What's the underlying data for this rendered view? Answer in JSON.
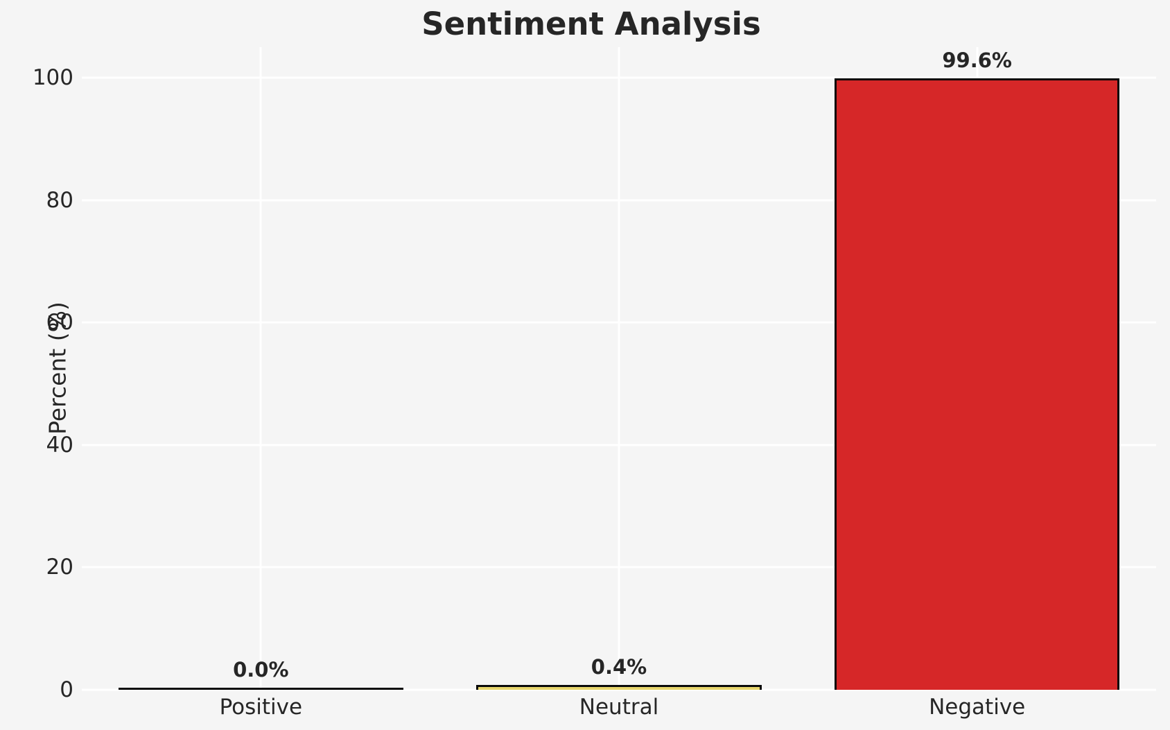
{
  "chart": {
    "title": "Sentiment Analysis",
    "ylabel": "Percent (%)"
  },
  "chart_data": {
    "type": "bar",
    "title": "Sentiment Analysis",
    "xlabel": "",
    "ylabel": "Percent (%)",
    "categories": [
      "Positive",
      "Neutral",
      "Negative"
    ],
    "values": [
      0.0,
      0.4,
      99.6
    ],
    "value_labels": [
      "0.0%",
      "0.4%",
      "99.6%"
    ],
    "yticks": [
      "0",
      "20",
      "40",
      "60",
      "80",
      "100"
    ],
    "ytick_values": [
      0,
      20,
      40,
      60,
      80,
      100
    ],
    "ylim": [
      0,
      105
    ],
    "grid": "on",
    "legend": "none",
    "bar_width_fraction": 0.8,
    "colors": {
      "background": "#f5f5f5",
      "grid": "#ffffff",
      "text": "#262626",
      "bar_fills": [
        "#8c8c8c",
        "#e8d66d",
        "#d62728"
      ],
      "bar_edge": "#0a0a0a"
    }
  }
}
